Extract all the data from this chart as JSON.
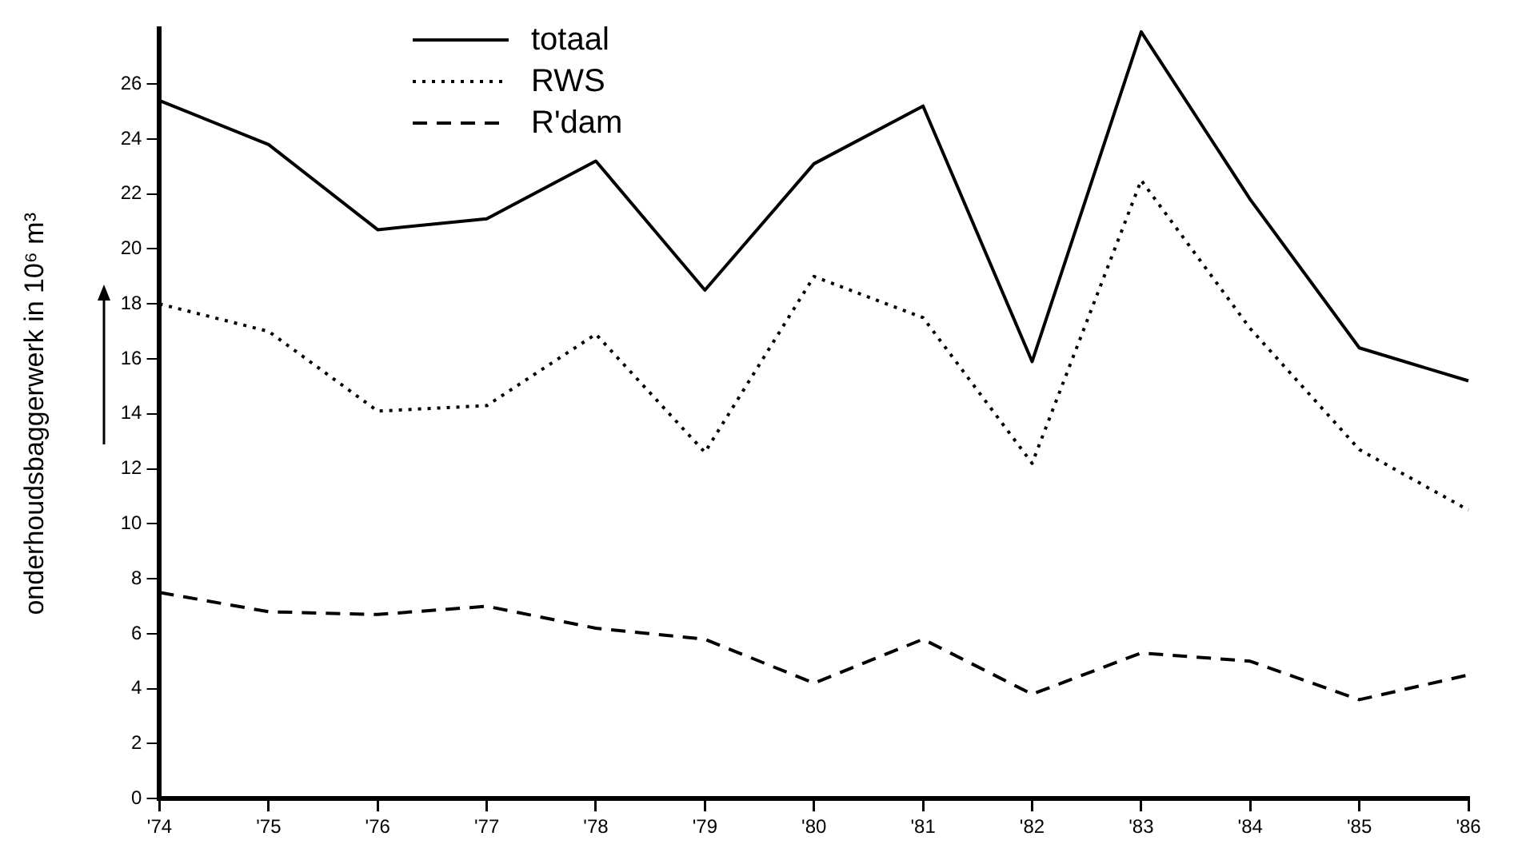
{
  "chart_data": {
    "type": "line",
    "ylabel": "onderhoudsbaggerwerk in 10⁶ m³",
    "categories": [
      "'74",
      "'75",
      "'76",
      "'77",
      "'78",
      "'79",
      "'80",
      "'81",
      "'82",
      "'83",
      "'84",
      "'85",
      "'86"
    ],
    "series": [
      {
        "name": "totaal",
        "color": "#000000",
        "line_style": "solid",
        "values": [
          25.4,
          23.8,
          20.7,
          21.1,
          23.2,
          18.5,
          23.1,
          25.2,
          15.9,
          27.9,
          21.8,
          16.4,
          15.2
        ]
      },
      {
        "name": "RWS",
        "color": "#000000",
        "line_style": "dotted",
        "values": [
          18.0,
          17.0,
          14.1,
          14.3,
          16.9,
          12.6,
          19.0,
          17.5,
          12.2,
          22.5,
          17.1,
          12.7,
          10.5
        ]
      },
      {
        "name": "R'dam",
        "color": "#000000",
        "line_style": "dashed",
        "values": [
          7.5,
          6.8,
          6.7,
          7.0,
          6.2,
          5.8,
          4.2,
          5.8,
          3.8,
          5.3,
          5.0,
          3.6,
          4.5
        ]
      }
    ],
    "ylim": [
      0,
      28
    ],
    "yticks": [
      0,
      2,
      4,
      6,
      8,
      10,
      12,
      14,
      16,
      18,
      20,
      22,
      24,
      26
    ],
    "grid": false,
    "legend": "top left",
    "marker": "none"
  }
}
